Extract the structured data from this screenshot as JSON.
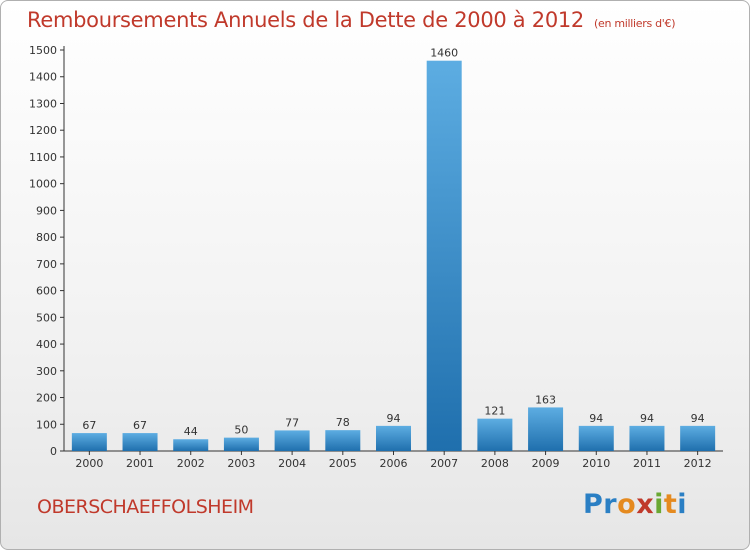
{
  "header": {
    "title": "Remboursements Annuels de la Dette de 2000 à 2012",
    "unit": "(en milliers d'€)"
  },
  "footer": {
    "commune": "OBERSCHAEFFOLSHEIM",
    "logo": [
      "P",
      "r",
      "o",
      "x",
      "i",
      "t",
      "i"
    ]
  },
  "colors": {
    "title": "#c0392b",
    "bar_light": "#5dade2",
    "bar_dark": "#1f6fad"
  },
  "chart_data": {
    "type": "bar",
    "title": "Remboursements Annuels de la Dette de 2000 à 2012",
    "ylabel": "(en milliers d'€)",
    "xlabel": "",
    "categories": [
      "2000",
      "2001",
      "2002",
      "2003",
      "2004",
      "2005",
      "2006",
      "2007",
      "2008",
      "2009",
      "2010",
      "2011",
      "2012"
    ],
    "values": [
      67,
      67,
      44,
      50,
      77,
      78,
      94,
      1460,
      121,
      163,
      94,
      94,
      94
    ],
    "data_labels": [
      "67",
      "67",
      "44",
      "50",
      "77",
      "78",
      "94",
      "1460",
      "121",
      "163",
      "94",
      "94",
      "94"
    ],
    "ylim": [
      0,
      1500
    ],
    "yticks": [
      0,
      100,
      200,
      300,
      400,
      500,
      600,
      700,
      800,
      900,
      1000,
      1100,
      1200,
      1300,
      1400,
      1500
    ],
    "grid": false,
    "legend": "none"
  }
}
